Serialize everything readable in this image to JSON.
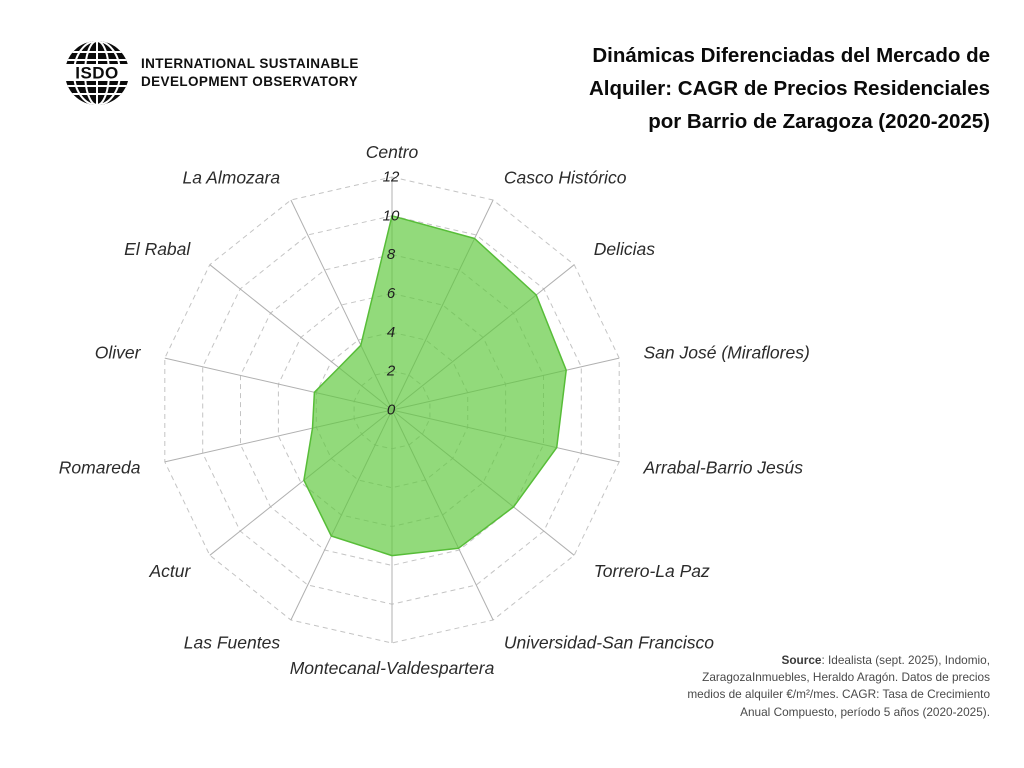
{
  "header": {
    "logo_text": "ISDO",
    "org_name_line1": "INTERNATIONAL SUSTAINABLE",
    "org_name_line2": "DEVELOPMENT OBSERVATORY",
    "title_lines": [
      "Dinámicas Diferenciadas del Mercado de",
      "Alquiler: CAGR de Precios Residenciales",
      "por Barrio de Zaragoza (2020-2025)"
    ]
  },
  "chart_data": {
    "type": "radar",
    "title": "Dinámicas Diferenciadas del Mercado de Alquiler: CAGR de Precios Residenciales por Barrio de Zaragoza (2020-2025)",
    "categories": [
      "Centro",
      "Casco Histórico",
      "Delicias",
      "San José (Miraflores)",
      "Arrabal-Barrio Jesús",
      "Torrero-La Paz",
      "Universidad-San Francisco",
      "Montecanal-Valdespartera",
      "Las Fuentes",
      "Actur",
      "Romareda",
      "Oliver",
      "El Rabal",
      "La Almozara"
    ],
    "values": [
      10.0,
      9.8,
      9.5,
      9.2,
      8.7,
      8.0,
      7.9,
      7.5,
      7.2,
      5.8,
      4.2,
      4.1,
      3.5,
      3.7
    ],
    "radial_ticks": [
      0,
      2,
      4,
      6,
      8,
      10,
      12
    ],
    "rlim": [
      0,
      12
    ],
    "start_angle_deg": 90,
    "direction": "clockwise",
    "grid": "dashed-rings-with-solid-spokes",
    "legend_position": "none",
    "colors": {
      "fill": "#5fc83d",
      "fill_opacity": 0.68,
      "stroke": "#57bd38",
      "grid": "#c4c4c4",
      "spoke": "#b0b0b0",
      "tick_label": "#1f1f1f",
      "axis_label": "#2b2b2b"
    }
  },
  "footer": {
    "source_label": "Source",
    "line1_rest": ": Idealista (sept. 2025), Indomio,",
    "line2": "ZaragozaInmuebles, Heraldo Aragón. Datos de precios",
    "line3": "medios de alquiler €/m²/mes. CAGR: Tasa de Crecimiento",
    "line4": "Anual Compuesto, período 5 años (2020-2025)."
  }
}
